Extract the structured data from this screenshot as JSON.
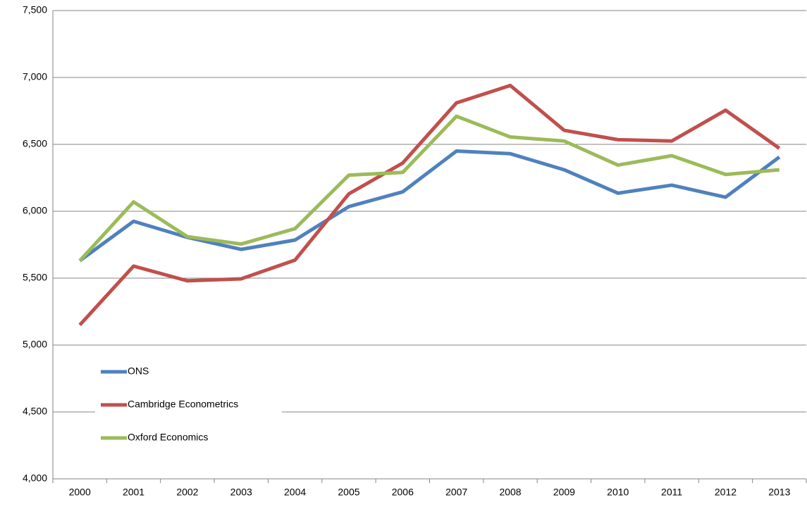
{
  "chart_data": {
    "type": "line",
    "categories": [
      "2000",
      "2001",
      "2002",
      "2003",
      "2004",
      "2005",
      "2006",
      "2007",
      "2008",
      "2009",
      "2010",
      "2011",
      "2012",
      "2013"
    ],
    "series": [
      {
        "name": "ONS",
        "color": "#4f81bd",
        "values": [
          5630,
          5925,
          5805,
          5715,
          5785,
          6035,
          6145,
          6450,
          6430,
          6310,
          6135,
          6195,
          6105,
          6405
        ]
      },
      {
        "name": "Cambridge Econometrics",
        "color": "#c0504d",
        "values": [
          5150,
          5590,
          5480,
          5495,
          5635,
          6130,
          6360,
          6810,
          6940,
          6605,
          6535,
          6525,
          6755,
          6470
        ]
      },
      {
        "name": "Oxford Economics",
        "color": "#9bbb59",
        "values": [
          5630,
          6070,
          5810,
          5755,
          5870,
          6270,
          6290,
          6710,
          6555,
          6525,
          6345,
          6415,
          6275,
          6310
        ]
      }
    ],
    "ylim": [
      4000,
      7500
    ],
    "yticks": [
      {
        "value": 4000,
        "label": "4,000"
      },
      {
        "value": 4500,
        "label": "4,500"
      },
      {
        "value": 5000,
        "label": "5,000"
      },
      {
        "value": 5500,
        "label": "5,500"
      },
      {
        "value": 6000,
        "label": "6,000"
      },
      {
        "value": 6500,
        "label": "6,500"
      },
      {
        "value": 7000,
        "label": "7,000"
      },
      {
        "value": 7500,
        "label": "7,500"
      }
    ],
    "grid": true,
    "legend": "lower-left"
  }
}
